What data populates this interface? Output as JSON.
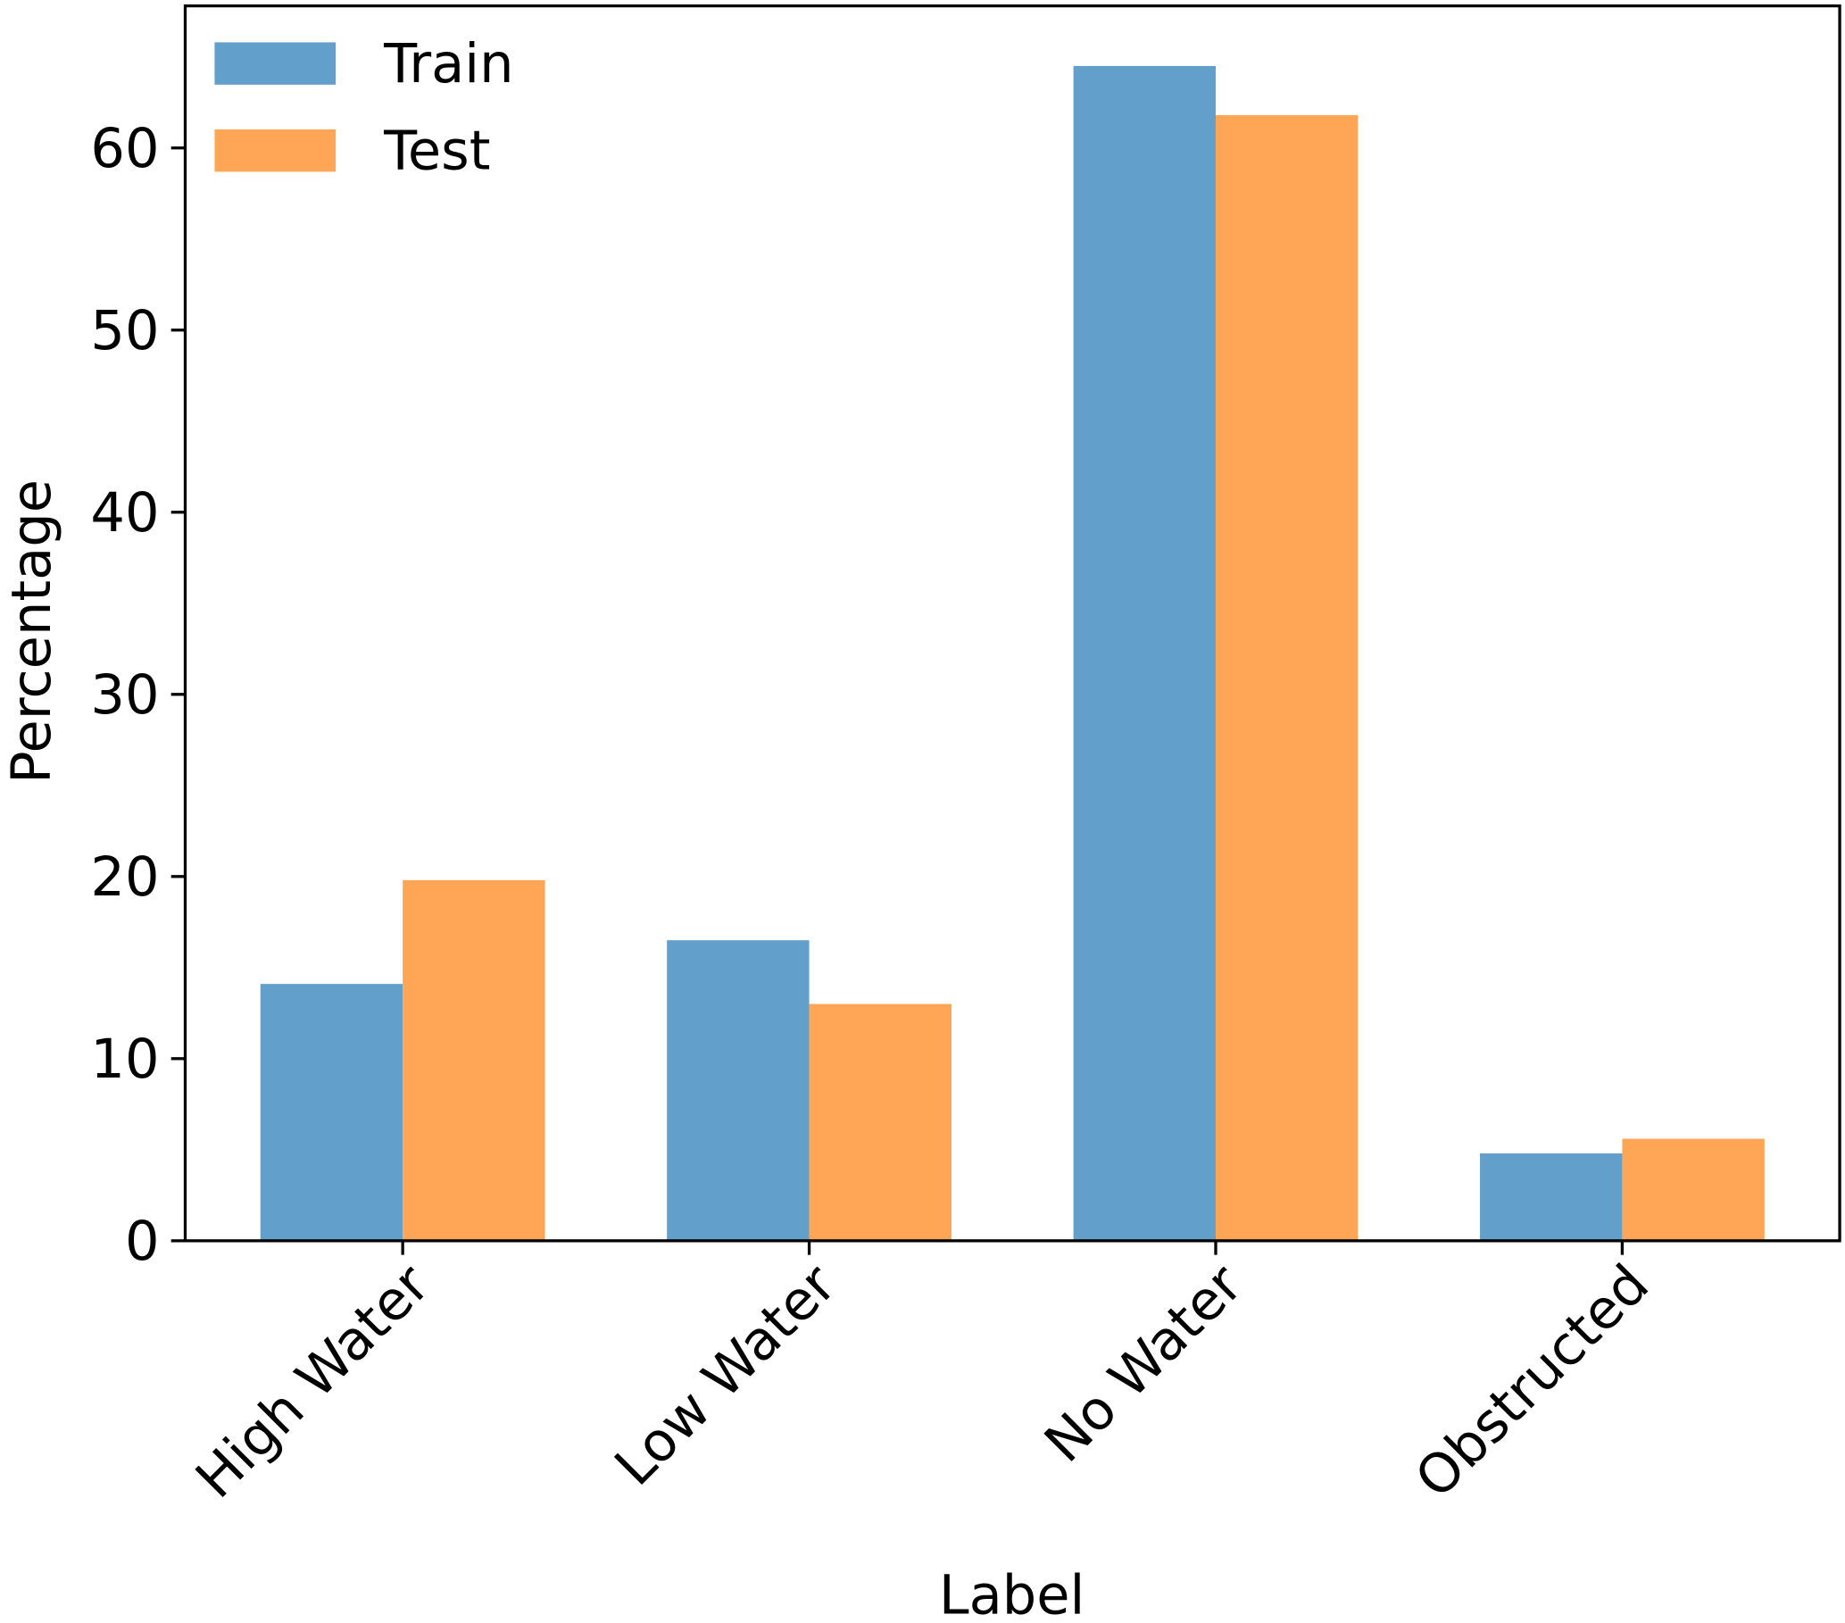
{
  "chart_data": {
    "type": "bar",
    "title": "",
    "xlabel": "Label",
    "ylabel": "Percentage",
    "categories": [
      "High Water",
      "Low Water",
      "No Water",
      "Obstructed"
    ],
    "series": [
      {
        "name": "Train",
        "color": "#62a0cb",
        "values": [
          14.1,
          16.5,
          64.5,
          4.8
        ]
      },
      {
        "name": "Test",
        "color": "#fea655",
        "values": [
          19.8,
          13.0,
          61.8,
          5.6
        ]
      }
    ],
    "ylim": [
      0,
      67.8
    ],
    "yticks": [
      0,
      10,
      20,
      30,
      40,
      50,
      60
    ],
    "grid": false,
    "legend_position": "top-left"
  }
}
